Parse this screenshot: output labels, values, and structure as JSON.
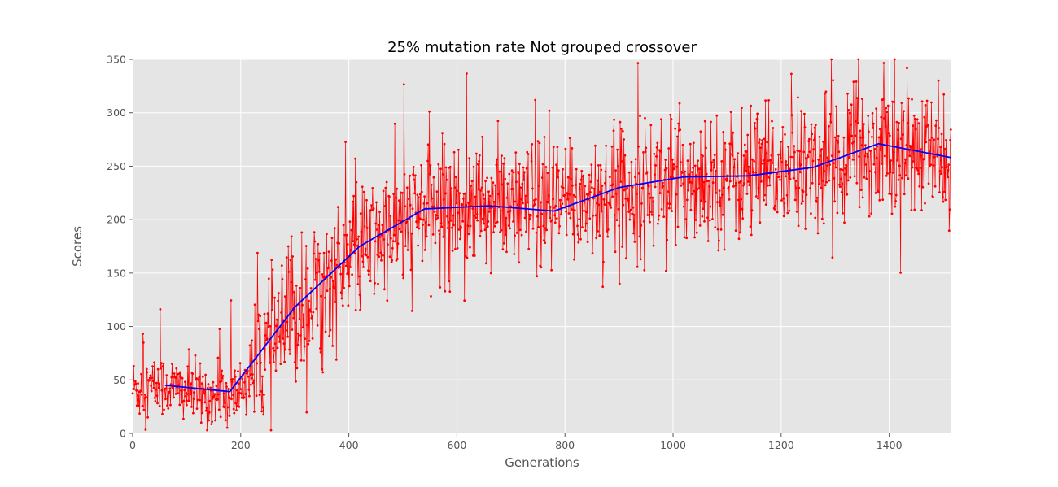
{
  "chart_data": {
    "type": "line",
    "title": "25% mutation rate  Not grouped crossover",
    "xlabel": "Generations",
    "ylabel": "Scores",
    "xlim": [
      0,
      1515
    ],
    "ylim": [
      0,
      350
    ],
    "x_ticks": [
      "0",
      "200",
      "400",
      "600",
      "800",
      "1000",
      "1200",
      "1400"
    ],
    "y_ticks": [
      "0",
      "50",
      "100",
      "150",
      "200",
      "250",
      "300",
      "350"
    ],
    "grid": true,
    "legend": "none",
    "style": "ggplot",
    "colors": {
      "raw": "#ff0000",
      "trend": "#0000ff",
      "background": "#e5e5e5",
      "grid": "#ffffff"
    },
    "raw_series": {
      "points": 1515,
      "approx_mean_by_generation": [
        {
          "x": 0,
          "y": 42
        },
        {
          "x": 60,
          "y": 44
        },
        {
          "x": 180,
          "y": 30
        },
        {
          "x": 300,
          "y": 110
        },
        {
          "x": 420,
          "y": 170
        },
        {
          "x": 540,
          "y": 208
        },
        {
          "x": 660,
          "y": 212
        },
        {
          "x": 780,
          "y": 210
        },
        {
          "x": 900,
          "y": 228
        },
        {
          "x": 1020,
          "y": 238
        },
        {
          "x": 1140,
          "y": 240
        },
        {
          "x": 1260,
          "y": 250
        },
        {
          "x": 1380,
          "y": 268
        },
        {
          "x": 1515,
          "y": 255
        }
      ],
      "approx_spread": 55
    },
    "series": [
      {
        "x": [
          60,
          180,
          300,
          420,
          540,
          660,
          780,
          900,
          1020,
          1140,
          1260,
          1380,
          1515
        ],
        "y": [
          45,
          39,
          118,
          175,
          210,
          213,
          208,
          230,
          240,
          241,
          249,
          271,
          258
        ]
      }
    ]
  }
}
